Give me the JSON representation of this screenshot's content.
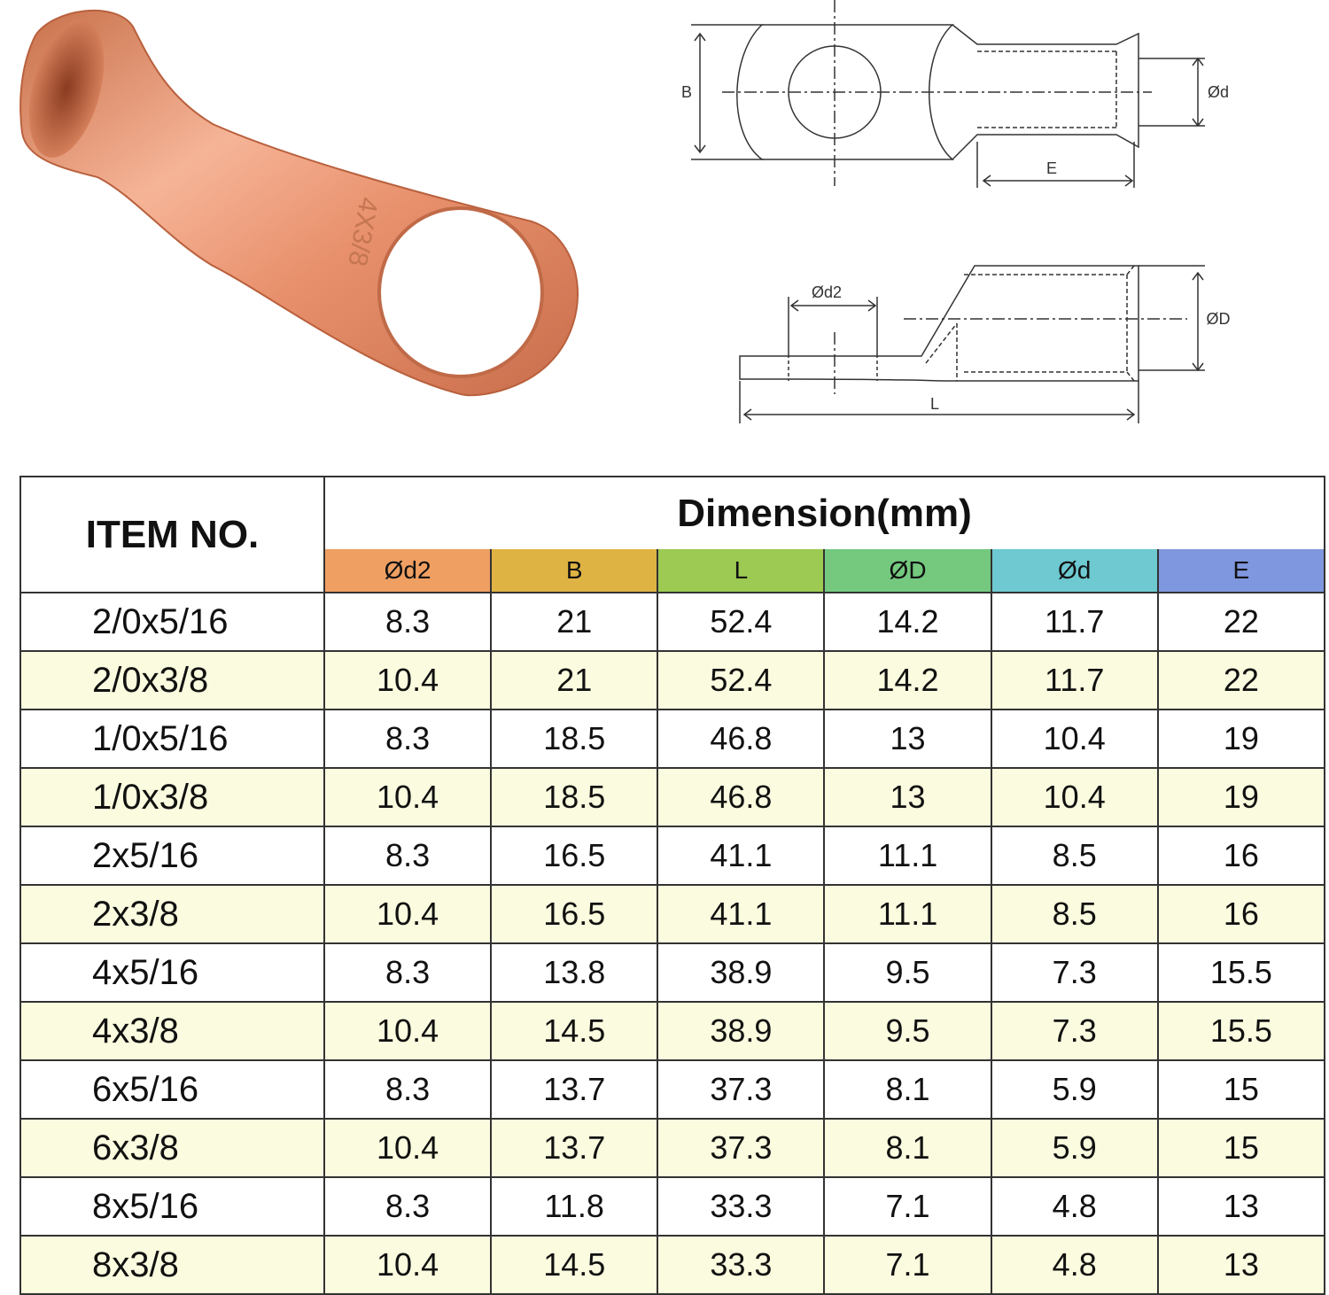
{
  "product_image": {
    "engraving": "4X3/8"
  },
  "diagram_labels": {
    "top_view": [
      "B",
      "Ød",
      "E"
    ],
    "side_view": [
      "Ød2",
      "ØD",
      "L"
    ]
  },
  "table": {
    "header": {
      "item": "ITEM NO.",
      "group": "Dimension(mm)",
      "columns": [
        "Ød2",
        "B",
        "L",
        "ØD",
        "Ød",
        "E"
      ]
    },
    "rows": [
      [
        "2/0x5/16",
        8.3,
        21,
        52.4,
        14.2,
        11.7,
        22
      ],
      [
        "2/0x3/8",
        10.4,
        21,
        52.4,
        14.2,
        11.7,
        22
      ],
      [
        "1/0x5/16",
        8.3,
        18.5,
        46.8,
        13,
        10.4,
        19
      ],
      [
        "1/0x3/8",
        10.4,
        18.5,
        46.8,
        13,
        10.4,
        19
      ],
      [
        "2x5/16",
        8.3,
        16.5,
        41.1,
        11.1,
        8.5,
        16
      ],
      [
        "2x3/8",
        10.4,
        16.5,
        41.1,
        11.1,
        8.5,
        16
      ],
      [
        "4x5/16",
        8.3,
        13.8,
        38.9,
        9.5,
        7.3,
        15.5
      ],
      [
        "4x3/8",
        10.4,
        14.5,
        38.9,
        9.5,
        7.3,
        15.5
      ],
      [
        "6x5/16",
        8.3,
        13.7,
        37.3,
        8.1,
        5.9,
        15
      ],
      [
        "6x3/8",
        10.4,
        13.7,
        37.3,
        8.1,
        5.9,
        15
      ],
      [
        "8x5/16",
        8.3,
        11.8,
        33.3,
        7.1,
        4.8,
        13
      ],
      [
        "8x3/8",
        10.4,
        14.5,
        33.3,
        7.1,
        4.8,
        13
      ]
    ]
  }
}
